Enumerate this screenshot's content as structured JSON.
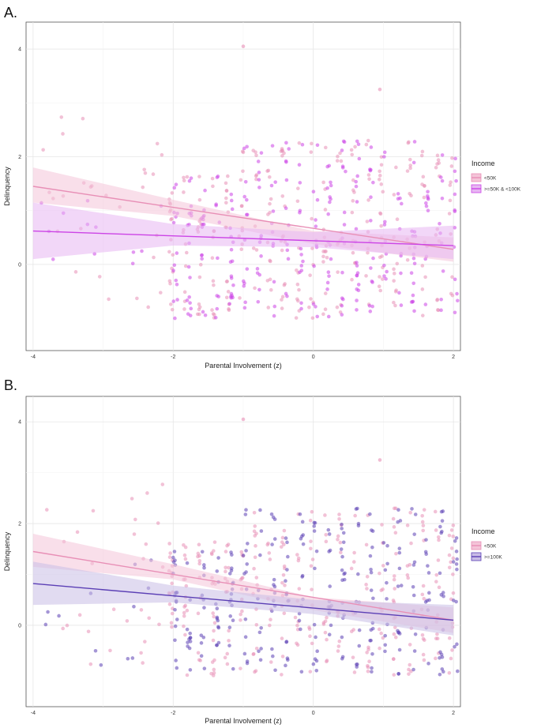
{
  "chart_data": [
    {
      "panel": "A.",
      "type": "scatter",
      "xlabel": "Parental Involvement (z)",
      "ylabel": "Delinquency",
      "xlim": [
        -4.1,
        2.1
      ],
      "ylim": [
        -1.6,
        4.5
      ],
      "xticks": [
        -4,
        -2,
        0,
        2
      ],
      "yticks": [
        0,
        2,
        4
      ],
      "grid": true,
      "legend": {
        "title": "Income",
        "placement": "right"
      },
      "series": [
        {
          "name": "<50K",
          "color": "#e88fb6",
          "band": "#f4c4d8",
          "fit": {
            "x": [
              -4,
              2
            ],
            "y": [
              1.45,
              0.28
            ]
          },
          "ci": {
            "x": [
              -4,
              -2,
              0,
              2
            ],
            "lo": [
              1.15,
              0.9,
              0.38,
              0.05
            ],
            "hi": [
              1.8,
              1.2,
              0.62,
              0.5
            ]
          }
        },
        {
          "name": ">=50K & <100K",
          "color": "#cc44e6",
          "band": "#e7b6f2",
          "fit": {
            "x": [
              -4,
              2
            ],
            "y": [
              0.62,
              0.35
            ]
          },
          "ci": {
            "x": [
              -4,
              -2,
              0,
              2
            ],
            "lo": [
              0.1,
              0.35,
              0.32,
              0.1
            ],
            "hi": [
              1.15,
              0.75,
              0.6,
              0.72
            ]
          }
        }
      ]
    },
    {
      "panel": "B.",
      "type": "scatter",
      "xlabel": "Parental Involvement (z)",
      "ylabel": "Delinquency",
      "xlim": [
        -4.1,
        2.1
      ],
      "ylim": [
        -1.6,
        4.5
      ],
      "xticks": [
        -4,
        -2,
        0,
        2
      ],
      "yticks": [
        0,
        2,
        4
      ],
      "grid": true,
      "legend": {
        "title": "Income",
        "placement": "right"
      },
      "series": [
        {
          "name": "<50K",
          "color": "#e88fb6",
          "band": "#f4c4d8",
          "fit": {
            "x": [
              -4,
              2
            ],
            "y": [
              1.45,
              0.1
            ]
          },
          "ci": {
            "x": [
              -4,
              -2,
              0,
              2
            ],
            "lo": [
              1.15,
              0.9,
              0.3,
              -0.15
            ],
            "hi": [
              1.8,
              1.2,
              0.55,
              0.35
            ]
          }
        },
        {
          "name": ">=100K",
          "color": "#5b3fb5",
          "band": "#c9bde6",
          "fit": {
            "x": [
              -4,
              2
            ],
            "y": [
              0.82,
              0.1
            ]
          },
          "ci": {
            "x": [
              -4,
              -2,
              0,
              2
            ],
            "lo": [
              0.4,
              0.45,
              0.22,
              -0.2
            ],
            "hi": [
              1.25,
              0.78,
              0.5,
              0.4
            ]
          }
        }
      ]
    }
  ]
}
